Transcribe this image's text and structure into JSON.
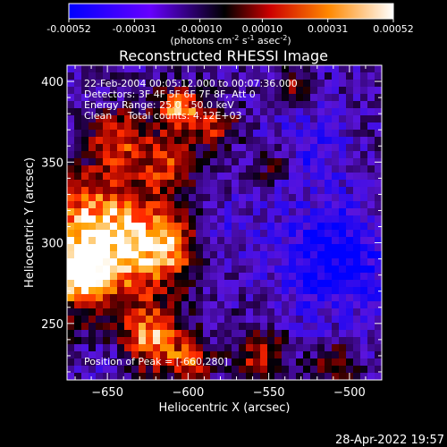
{
  "chart_data": {
    "type": "heatmap",
    "title": "Reconstructed RHESSI Image",
    "colorbar": {
      "ticks": [
        "-0.00052",
        "-0.00031",
        "-0.00010",
        "0.00010",
        "0.00031",
        "0.00052"
      ],
      "tick_values": [
        -0.00052,
        -0.00031,
        -0.0001,
        0.0001,
        0.00031,
        0.00052
      ],
      "range": [
        -0.00052,
        0.00052
      ],
      "label_prefix": "(photons cm",
      "label_sup1": "-2",
      "label_mid": " s",
      "label_sup2": "-1",
      "label_suffix": " asec",
      "label_sup3": "-2",
      "label_end": ")",
      "colors": [
        "#0000ff",
        "#6600ff",
        "#000000",
        "#ff0000",
        "#ffcc00",
        "#ffffff"
      ]
    },
    "xlabel": "Heliocentric X (arcsec)",
    "ylabel": "Heliocentric Y (arcsec)",
    "xlim": [
      -675,
      -480
    ],
    "ylim": [
      215,
      410
    ],
    "xticks": [
      -650,
      -600,
      -550,
      -500
    ],
    "xtick_labels": [
      "−650",
      "−600",
      "−550",
      "−500"
    ],
    "yticks": [
      250,
      300,
      350,
      400
    ],
    "ytick_labels": [
      "250",
      "300",
      "350",
      "400"
    ],
    "annotations": [
      "22-Feb-2004 00:05:12.000 to 00:07:36.000",
      "Detectors: 3F 4F 5F 6F 7F 8F, Att 0",
      "Energy Range: 25.0 - 50.0 keV",
      "Clean     Total counts: 4.12E+03"
    ],
    "peak_label": "Position of Peak = [-660,280]",
    "peak": [
      -660,
      280
    ],
    "emission_sources": [
      {
        "x": -655,
        "y": 300,
        "sigma": 30,
        "amp": 1.0
      },
      {
        "x": -668,
        "y": 280,
        "sigma": 10,
        "amp": 0.6
      },
      {
        "x": -642,
        "y": 365,
        "sigma": 12,
        "amp": 0.55
      },
      {
        "x": -605,
        "y": 383,
        "sigma": 10,
        "amp": 0.75
      },
      {
        "x": -612,
        "y": 350,
        "sigma": 12,
        "amp": 0.5
      },
      {
        "x": -582,
        "y": 372,
        "sigma": 9,
        "amp": 0.5
      },
      {
        "x": -612,
        "y": 298,
        "sigma": 14,
        "amp": 0.55
      },
      {
        "x": -622,
        "y": 240,
        "sigma": 14,
        "amp": 0.7
      },
      {
        "x": -598,
        "y": 225,
        "sigma": 9,
        "amp": 0.55
      },
      {
        "x": -555,
        "y": 230,
        "sigma": 12,
        "amp": 0.5
      },
      {
        "x": -510,
        "y": 225,
        "sigma": 9,
        "amp": 0.45
      },
      {
        "x": -535,
        "y": 398,
        "sigma": 8,
        "amp": 0.35
      },
      {
        "x": -548,
        "y": 348,
        "sigma": 8,
        "amp": 0.3
      }
    ],
    "negative_sources": [
      {
        "x": -510,
        "y": 290,
        "sigma": 26,
        "amp": 0.8
      },
      {
        "x": -525,
        "y": 360,
        "sigma": 16,
        "amp": 0.45
      },
      {
        "x": -580,
        "y": 310,
        "sigma": 14,
        "amp": 0.35
      },
      {
        "x": -650,
        "y": 230,
        "sigma": 10,
        "amp": 0.3
      }
    ]
  },
  "footer": {
    "timestamp": "28-Apr-2022 19:57"
  }
}
